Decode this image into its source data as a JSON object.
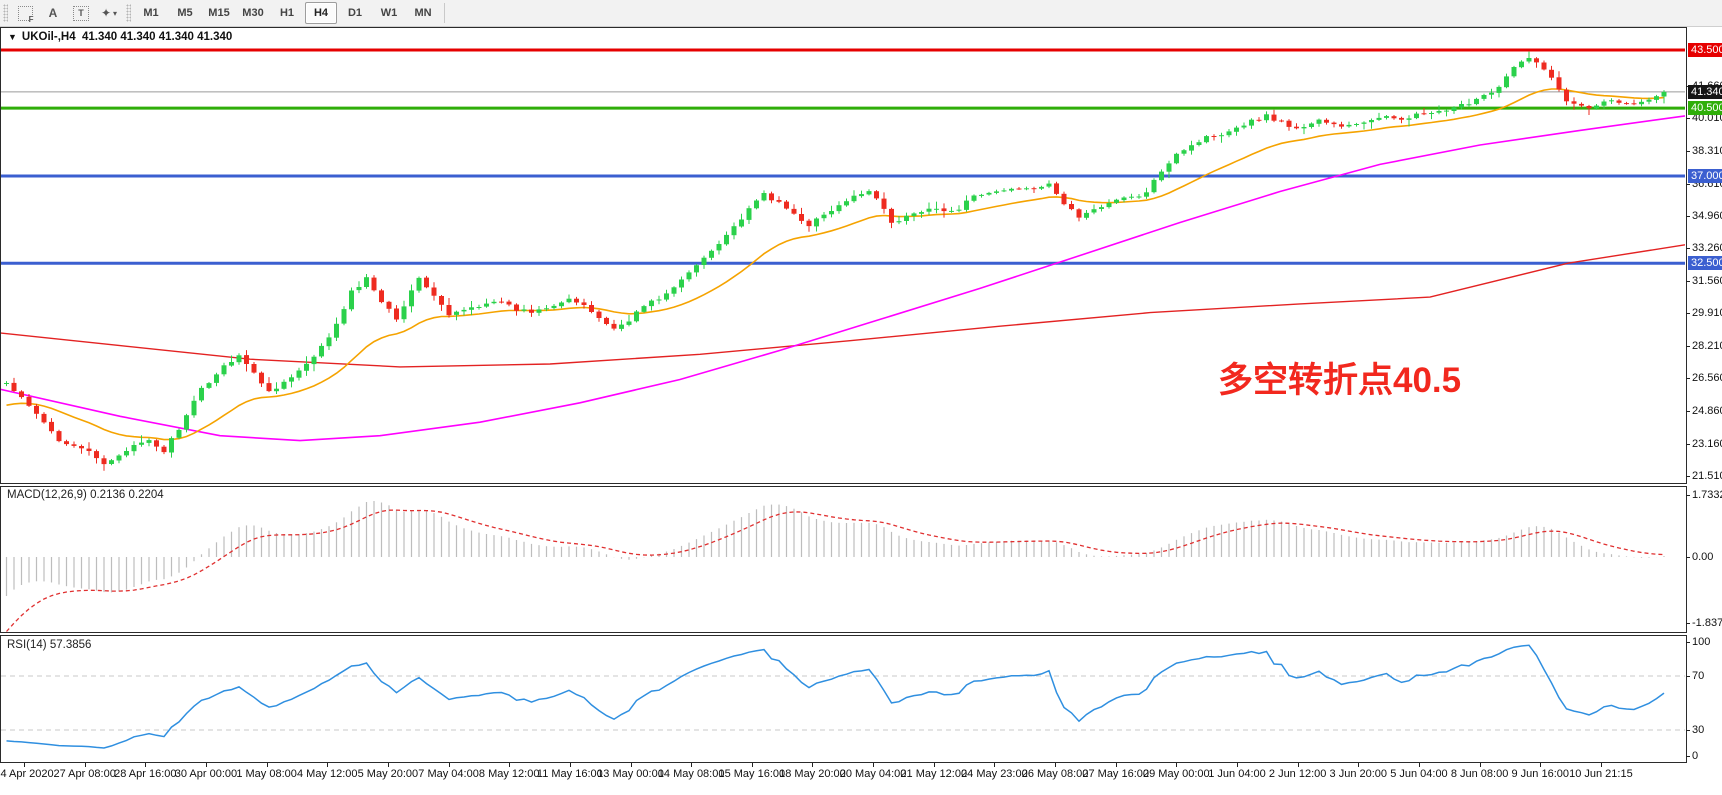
{
  "toolbar": {
    "tools": [
      {
        "name": "fibo-grid-tool",
        "glyph": "F"
      },
      {
        "name": "text-tool",
        "glyph": "A"
      },
      {
        "name": "label-tool",
        "glyph": "T"
      },
      {
        "name": "arrows-tool",
        "glyph": "✦"
      }
    ],
    "timeframes": [
      "M1",
      "M5",
      "M15",
      "M30",
      "H1",
      "H4",
      "D1",
      "W1",
      "MN"
    ],
    "active_timeframe": "H4"
  },
  "chart": {
    "symbol_title": "UKOil-,H4",
    "quotes": "41.340 41.340 41.340 41.340",
    "dropdown_glyph": "▼",
    "annotation": {
      "text": "多空转折点40.5",
      "color": "#f2281e"
    },
    "current_price_label": "41.340",
    "level_badges": [
      {
        "text": "43.500",
        "bg": "#e60000",
        "price": 43.5
      },
      {
        "text": "41.340",
        "bg": "#151515",
        "price": 41.34
      },
      {
        "text": "40.500",
        "bg": "#2fae09",
        "price": 40.5
      },
      {
        "text": "37.000",
        "bg": "#3b5fd0",
        "price": 37.0
      },
      {
        "text": "32.500",
        "bg": "#3b5fd0",
        "price": 32.5
      }
    ],
    "axis_labels": [
      "41.660",
      "40.010",
      "38.310",
      "36.610",
      "34.960",
      "33.260",
      "31.560",
      "29.910",
      "28.210",
      "26.560",
      "24.860",
      "23.160",
      "21.510"
    ]
  },
  "macd": {
    "name": "MACD(12,26,9)",
    "value_main": "0.2136",
    "value_signal": "0.2204",
    "axis_labels": [
      "1.7332",
      "0.00",
      "-1.8375"
    ]
  },
  "rsi": {
    "name": "RSI(14)",
    "value": "57.3856",
    "axis_labels": [
      "100",
      "70",
      "30",
      "0"
    ],
    "levels": [
      70,
      30
    ]
  },
  "time_axis": {
    "labels": [
      "24 Apr 2020",
      "27 Apr 08:00",
      "28 Apr 16:00",
      "30 Apr 00:00",
      "1 May 08:00",
      "4 May 12:00",
      "5 May 20:00",
      "7 May 04:00",
      "8 May 12:00",
      "11 May 16:00",
      "13 May 00:00",
      "14 May 08:00",
      "15 May 16:00",
      "18 May 20:00",
      "20 May 04:00",
      "21 May 12:00",
      "24 May 23:00",
      "26 May 08:00",
      "27 May 16:00",
      "29 May 00:00",
      "1 Jun 04:00",
      "2 Jun 12:00",
      "3 Jun 20:00",
      "5 Jun 04:00",
      "8 Jun 08:00",
      "9 Jun 16:00",
      "10 Jun 21:15"
    ]
  },
  "chart_data": {
    "type": "candlestick",
    "symbol": "UKOil-",
    "timeframe": "H4",
    "bars": 222,
    "y_range_main": [
      21.16,
      44.635
    ],
    "macd_range": [
      -2.05,
      1.94
    ],
    "rsi_range": [
      0,
      100
    ],
    "levels": [
      {
        "price": 43.5,
        "color": "#e60000"
      },
      {
        "price": 40.5,
        "color": "#2fae09"
      },
      {
        "price": 37.0,
        "color": "#3b5fd0"
      },
      {
        "price": 32.5,
        "color": "#3b5fd0"
      }
    ],
    "current_price": 41.34,
    "close_keypoints": [
      [
        0,
        26.3
      ],
      [
        3,
        25.1
      ],
      [
        7,
        23.4
      ],
      [
        10,
        23.0
      ],
      [
        13,
        22.1
      ],
      [
        16,
        22.9
      ],
      [
        19,
        23.3
      ],
      [
        21,
        22.8
      ],
      [
        24,
        24.6
      ],
      [
        26,
        26.0
      ],
      [
        29,
        27.2
      ],
      [
        31,
        27.8
      ],
      [
        33,
        26.8
      ],
      [
        35,
        25.9
      ],
      [
        38,
        26.6
      ],
      [
        41,
        27.6
      ],
      [
        44,
        29.3
      ],
      [
        46,
        31.0
      ],
      [
        48,
        31.7
      ],
      [
        50,
        30.6
      ],
      [
        52,
        29.7
      ],
      [
        54,
        31.0
      ],
      [
        55,
        31.8
      ],
      [
        57,
        30.8
      ],
      [
        59,
        29.8
      ],
      [
        62,
        30.2
      ],
      [
        65,
        30.6
      ],
      [
        68,
        30.1
      ],
      [
        70,
        30.0
      ],
      [
        73,
        30.4
      ],
      [
        75,
        30.7
      ],
      [
        78,
        30.0
      ],
      [
        81,
        29.1
      ],
      [
        83,
        29.6
      ],
      [
        85,
        30.3
      ],
      [
        88,
        30.9
      ],
      [
        90,
        31.6
      ],
      [
        93,
        32.8
      ],
      [
        95,
        33.6
      ],
      [
        98,
        34.8
      ],
      [
        101,
        36.1
      ],
      [
        104,
        35.3
      ],
      [
        107,
        34.5
      ],
      [
        110,
        35.2
      ],
      [
        113,
        35.9
      ],
      [
        115,
        36.3
      ],
      [
        117,
        35.4
      ],
      [
        118,
        34.5
      ],
      [
        120,
        34.9
      ],
      [
        123,
        35.4
      ],
      [
        126,
        35.1
      ],
      [
        129,
        35.9
      ],
      [
        132,
        36.2
      ],
      [
        135,
        36.4
      ],
      [
        139,
        36.5
      ],
      [
        141,
        35.6
      ],
      [
        143,
        34.9
      ],
      [
        145,
        35.2
      ],
      [
        147,
        35.7
      ],
      [
        150,
        35.9
      ],
      [
        152,
        36.1
      ],
      [
        154,
        37.3
      ],
      [
        156,
        38.2
      ],
      [
        158,
        38.6
      ],
      [
        160,
        39.0
      ],
      [
        162,
        39.2
      ],
      [
        165,
        39.7
      ],
      [
        168,
        40.1
      ],
      [
        170,
        39.8
      ],
      [
        172,
        39.4
      ],
      [
        175,
        39.9
      ],
      [
        178,
        39.5
      ],
      [
        181,
        39.8
      ],
      [
        184,
        40.0
      ],
      [
        186,
        40.0
      ],
      [
        189,
        40.2
      ],
      [
        192,
        40.3
      ],
      [
        195,
        40.8
      ],
      [
        197,
        41.2
      ],
      [
        199,
        41.6
      ],
      [
        201,
        42.6
      ],
      [
        203,
        43.05
      ],
      [
        205,
        42.6
      ],
      [
        206,
        42.0
      ],
      [
        208,
        40.9
      ],
      [
        211,
        40.6
      ],
      [
        213,
        40.8
      ],
      [
        214,
        41.0
      ],
      [
        216,
        40.7
      ],
      [
        218,
        40.9
      ],
      [
        221,
        41.34
      ]
    ],
    "prehistory_closes": [
      36.0,
      35.8,
      35.6,
      35.4,
      35.1,
      34.8,
      34.5,
      34.2,
      33.8,
      33.4,
      33.0,
      32.5,
      32.0,
      31.4,
      30.8,
      30.1,
      29.3,
      28.4,
      27.4,
      26.3,
      25.1,
      23.9,
      22.6,
      21.4,
      20.3,
      19.4,
      19.0,
      19.5,
      20.5,
      21.6,
      22.6,
      23.5,
      24.3,
      25.0,
      25.6,
      26.0,
      26.3
    ],
    "noise": 0.22,
    "seed": 42,
    "ma_red_keypoints": [
      [
        0,
        28.9
      ],
      [
        120,
        28.25
      ],
      [
        250,
        27.55
      ],
      [
        400,
        27.15
      ],
      [
        550,
        27.3
      ],
      [
        700,
        27.8
      ],
      [
        850,
        28.5
      ],
      [
        1000,
        29.25
      ],
      [
        1150,
        29.95
      ],
      [
        1300,
        30.4
      ],
      [
        1430,
        30.75
      ],
      [
        1568,
        32.5
      ],
      [
        1685,
        33.45
      ]
    ],
    "ma_magenta_keypoints": [
      [
        0,
        26.0
      ],
      [
        120,
        24.6
      ],
      [
        220,
        23.6
      ],
      [
        300,
        23.35
      ],
      [
        380,
        23.6
      ],
      [
        480,
        24.3
      ],
      [
        580,
        25.3
      ],
      [
        680,
        26.5
      ],
      [
        780,
        28.0
      ],
      [
        880,
        29.6
      ],
      [
        980,
        31.2
      ],
      [
        1080,
        32.9
      ],
      [
        1180,
        34.6
      ],
      [
        1280,
        36.2
      ],
      [
        1380,
        37.6
      ],
      [
        1480,
        38.6
      ],
      [
        1580,
        39.35
      ],
      [
        1685,
        40.1
      ]
    ],
    "ema_orange_period": 21,
    "macd_params": [
      12,
      26,
      9
    ],
    "rsi_period": 14,
    "colors": {
      "up": "#2bd14b",
      "down": "#ee2b20",
      "ma_fast": "#f5a300",
      "ma_mid": "#ff00ff",
      "ma_slow": "#e32222",
      "macd_hist": "#bdbdbd",
      "macd_signal": "#e03030",
      "rsi_line": "#2f8fe0",
      "current_price_line": "#9a9a9a"
    }
  }
}
